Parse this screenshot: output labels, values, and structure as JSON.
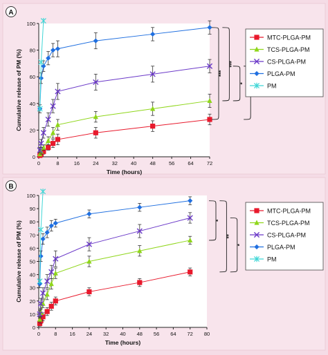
{
  "chart_data": [
    {
      "type": "line",
      "panel_label": "A",
      "xlabel": "Time (hours)",
      "ylabel": "Cumulative release of PM (%)",
      "xlim": [
        0,
        72
      ],
      "ylim": [
        0,
        100
      ],
      "xticks": [
        0,
        8,
        16,
        24,
        32,
        40,
        48,
        56,
        64,
        72
      ],
      "yticks": [
        0,
        20,
        40,
        60,
        80,
        100
      ],
      "legend_position": "right",
      "series": [
        {
          "name": "MTC-PLGA-PM",
          "color": "#e8192c",
          "marker": "square",
          "x": [
            0.5,
            1,
            2,
            4,
            6,
            8,
            24,
            48,
            72
          ],
          "y": [
            1,
            2,
            4,
            7,
            10,
            13,
            18,
            23,
            28
          ],
          "err": [
            1,
            1,
            2,
            2,
            3,
            4,
            4,
            4,
            4
          ]
        },
        {
          "name": "TCS-PLGA-PM",
          "color": "#8fd61a",
          "marker": "triangle",
          "x": [
            0.5,
            1,
            2,
            4,
            6,
            8,
            24,
            48,
            72
          ],
          "y": [
            2,
            4,
            7,
            12,
            18,
            24,
            30,
            36,
            42
          ],
          "err": [
            1,
            2,
            2,
            3,
            4,
            4,
            4,
            5,
            5
          ]
        },
        {
          "name": "CS-PLGA-PM",
          "color": "#6a38c8",
          "marker": "x",
          "x": [
            0.5,
            1,
            2,
            4,
            6,
            8,
            24,
            48,
            72
          ],
          "y": [
            5,
            10,
            18,
            28,
            38,
            49,
            56,
            62,
            68
          ],
          "err": [
            2,
            3,
            4,
            5,
            5,
            6,
            6,
            6,
            5
          ]
        },
        {
          "name": "PLGA-PM",
          "color": "#1f6fe0",
          "marker": "diamond",
          "x": [
            0.5,
            1,
            2,
            4,
            6,
            8,
            24,
            48,
            72
          ],
          "y": [
            36,
            59,
            68,
            74,
            80,
            81,
            87,
            92,
            97
          ],
          "err": [
            3,
            4,
            4,
            5,
            5,
            6,
            6,
            5,
            5
          ]
        },
        {
          "name": "PM",
          "color": "#3fd6d6",
          "marker": "asterisk",
          "x": [
            0.5,
            1,
            2
          ],
          "y": [
            36,
            71,
            102
          ],
          "err": [
            0,
            0,
            0
          ]
        }
      ],
      "significance": [
        {
          "between": [
            "PLGA-PM",
            "MTC-PLGA-PM"
          ],
          "label": "***"
        },
        {
          "between": [
            "PLGA-PM",
            "TCS-PLGA-PM"
          ],
          "label": "***"
        },
        {
          "between": [
            "CS-PLGA-PM",
            "TCS-PLGA-PM"
          ],
          "label": "*"
        },
        {
          "between": [
            "CS-PLGA-PM",
            "MTC-PLGA-PM"
          ],
          "label": "*"
        }
      ]
    },
    {
      "type": "line",
      "panel_label": "B",
      "xlabel": "Time (hours)",
      "ylabel": "Cumulative release of PM (%)",
      "xlim": [
        0,
        80
      ],
      "ylim": [
        0,
        100
      ],
      "xticks": [
        0,
        8,
        16,
        24,
        32,
        40,
        48,
        56,
        64,
        72,
        80
      ],
      "yticks": [
        0,
        10,
        20,
        30,
        40,
        50,
        60,
        70,
        80,
        90,
        100
      ],
      "legend_position": "right",
      "series": [
        {
          "name": "MTC-PLGA-PM",
          "color": "#e8192c",
          "marker": "square",
          "x": [
            0.5,
            1,
            2,
            4,
            6,
            8,
            24,
            48,
            72
          ],
          "y": [
            3,
            5,
            8,
            12,
            16,
            20,
            27,
            34,
            42
          ],
          "err": [
            2,
            2,
            3,
            3,
            3,
            3,
            3,
            3,
            3
          ]
        },
        {
          "name": "TCS-PLGA-PM",
          "color": "#8fd61a",
          "marker": "triangle",
          "x": [
            0.5,
            1,
            2,
            4,
            6,
            8,
            24,
            48,
            72
          ],
          "y": [
            6,
            11,
            18,
            25,
            33,
            41,
            50,
            58,
            66
          ],
          "err": [
            2,
            3,
            3,
            4,
            4,
            4,
            4,
            4,
            3
          ]
        },
        {
          "name": "CS-PLGA-PM",
          "color": "#6a38c8",
          "marker": "x",
          "x": [
            0.5,
            1,
            2,
            4,
            6,
            8,
            24,
            48,
            72
          ],
          "y": [
            10,
            18,
            26,
            35,
            42,
            52,
            63,
            73,
            83
          ],
          "err": [
            3,
            4,
            4,
            5,
            5,
            6,
            5,
            5,
            4
          ]
        },
        {
          "name": "PLGA-PM",
          "color": "#1f6fe0",
          "marker": "diamond",
          "x": [
            0.5,
            1,
            2,
            4,
            6,
            8,
            24,
            48,
            72
          ],
          "y": [
            33,
            54,
            67,
            72,
            77,
            79,
            86,
            91,
            96
          ],
          "err": [
            3,
            4,
            4,
            4,
            4,
            3,
            3,
            3,
            3
          ]
        },
        {
          "name": "PM",
          "color": "#3fd6d6",
          "marker": "asterisk",
          "x": [
            0.5,
            1,
            2
          ],
          "y": [
            35,
            74,
            103
          ],
          "err": [
            0,
            0,
            0
          ]
        }
      ],
      "significance": [
        {
          "between": [
            "PLGA-PM",
            "TCS-PLGA-PM"
          ],
          "label": "*"
        },
        {
          "between": [
            "PLGA-PM",
            "MTC-PLGA-PM"
          ],
          "label": "**"
        },
        {
          "between": [
            "CS-PLGA-PM",
            "MTC-PLGA-PM"
          ],
          "label": "*"
        }
      ]
    }
  ]
}
